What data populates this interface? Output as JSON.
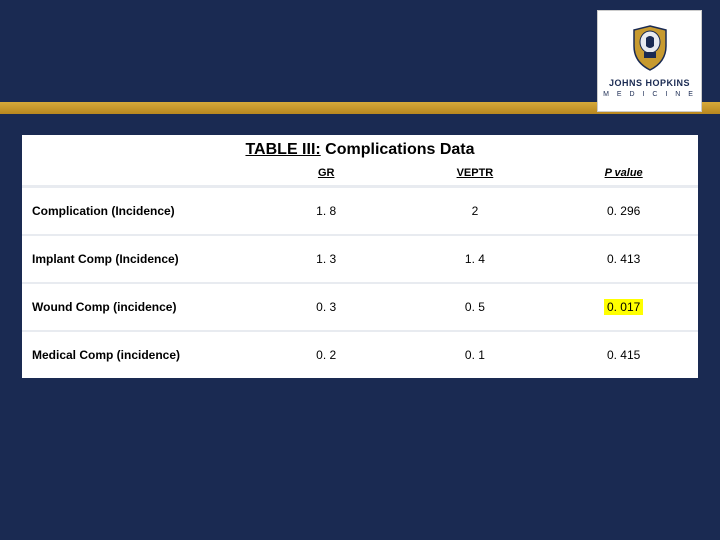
{
  "header": {
    "logo_line1": "JOHNS HOPKINS",
    "logo_line2": "M E D I C I N E"
  },
  "table": {
    "title_prefix": "TABLE III:",
    "title_rest": " Complications Data",
    "columns": [
      "",
      "GR",
      "VEPTR",
      "P value"
    ],
    "column_widths": [
      "34%",
      "22%",
      "22%",
      "22%"
    ],
    "rows": [
      {
        "label": "Complication (Incidence)",
        "gr": "1. 8",
        "veptr": "2",
        "p": "0. 296",
        "highlight": false
      },
      {
        "label": "Implant Comp (Incidence)",
        "gr": "1. 3",
        "veptr": "1. 4",
        "p": "0. 413",
        "highlight": false
      },
      {
        "label": "Wound Comp (incidence)",
        "gr": "0. 3",
        "veptr": "0. 5",
        "p": "0. 017",
        "highlight": true
      },
      {
        "label": "Medical Comp (incidence)",
        "gr": "0. 2",
        "veptr": "0. 1",
        "p": "0. 415",
        "highlight": false
      }
    ]
  },
  "colors": {
    "page_bg": "#1a2a52",
    "gold": "#c79a2f",
    "highlight": "#ffff00",
    "row_sep": "#e8ebf0"
  }
}
